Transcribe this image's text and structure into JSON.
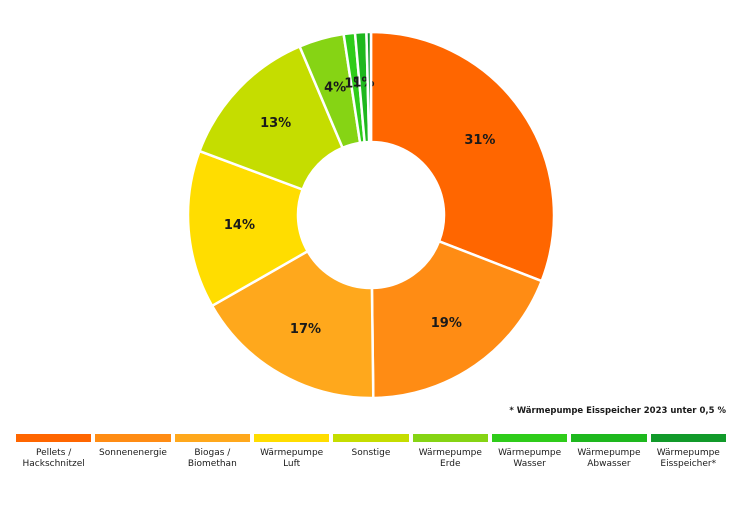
{
  "chart_data": {
    "type": "pie",
    "donut": true,
    "title": "",
    "slices": [
      {
        "label": "Pellets /\nHackschnitzel",
        "value": 31,
        "value_label": "31%",
        "color": "#ff6600"
      },
      {
        "label": "Sonnenenergie",
        "value": 19,
        "value_label": "19%",
        "color": "#ff8c14"
      },
      {
        "label": "Biogas /\nBiomethan",
        "value": 17,
        "value_label": "17%",
        "color": "#ffa81c"
      },
      {
        "label": "Wärmepumpe\nLuft",
        "value": 14,
        "value_label": "14%",
        "color": "#ffdd00"
      },
      {
        "label": "Sonstige",
        "value": 13,
        "value_label": "13%",
        "color": "#c5dd00"
      },
      {
        "label": "Wärmepumpe\nErde",
        "value": 4,
        "value_label": "4%",
        "color": "#86d414"
      },
      {
        "label": "Wärmepumpe\nWasser",
        "value": 1,
        "value_label": "1%",
        "color": "#2fcc1a"
      },
      {
        "label": "Wärmepumpe\nAbwasser",
        "value": 1,
        "value_label": "1%",
        "color": "#1eb81e"
      },
      {
        "label": "Wärmepumpe\nEisspeicher*",
        "value": 0.4,
        "value_label": "",
        "color": "#119a2a"
      }
    ],
    "legend_position": "bottom",
    "footnote": "* Wärmepumpe Eisspeicher 2023 unter 0,5 %"
  }
}
